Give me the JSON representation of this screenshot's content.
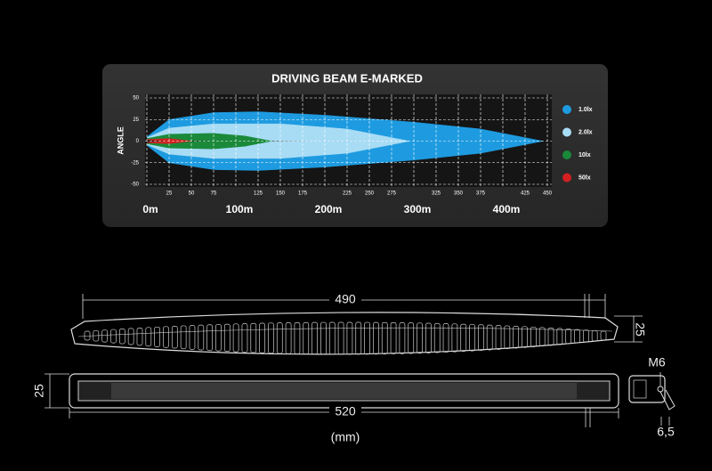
{
  "chart_data": {
    "type": "area",
    "title": "DRIVING BEAM E-MARKED",
    "y_label": "ANGLE",
    "xlim": [
      0,
      450
    ],
    "ylim": [
      -50,
      50
    ],
    "xticks": [
      25,
      50,
      75,
      125,
      150,
      175,
      225,
      250,
      275,
      325,
      350,
      375,
      425,
      450
    ],
    "x_distance_ticks": [
      {
        "value": 0,
        "label": "0m"
      },
      {
        "value": 100,
        "label": "100m"
      },
      {
        "value": 200,
        "label": "200m"
      },
      {
        "value": 300,
        "label": "300m"
      },
      {
        "value": 400,
        "label": "400m"
      }
    ],
    "yticks": [
      50,
      25,
      0,
      -25,
      -50
    ],
    "grid": true,
    "series": [
      {
        "name": "1.0lx",
        "color": "#1e9be0",
        "x": [
          0,
          25,
          75,
          125,
          200,
          300,
          375,
          445
        ],
        "values": [
          5,
          25,
          33,
          34,
          30,
          22,
          14,
          0
        ]
      },
      {
        "name": "2.0lx",
        "color": "#a8dcf5",
        "x": [
          0,
          25,
          75,
          150,
          225,
          295
        ],
        "values": [
          4,
          15,
          20,
          20,
          14,
          0
        ]
      },
      {
        "name": "10lx",
        "color": "#1a8a3a",
        "x": [
          0,
          25,
          75,
          110,
          140
        ],
        "values": [
          3,
          8,
          9,
          6,
          0
        ]
      },
      {
        "name": "50lx",
        "color": "#d42020",
        "x": [
          0,
          25,
          50
        ],
        "values": [
          2,
          3,
          0
        ]
      }
    ]
  },
  "drawing": {
    "top_length": "490",
    "top_height": "25",
    "front_height": "25",
    "front_length": "520",
    "thread": "M6",
    "bracket": "6,5",
    "unit": "(mm)"
  }
}
